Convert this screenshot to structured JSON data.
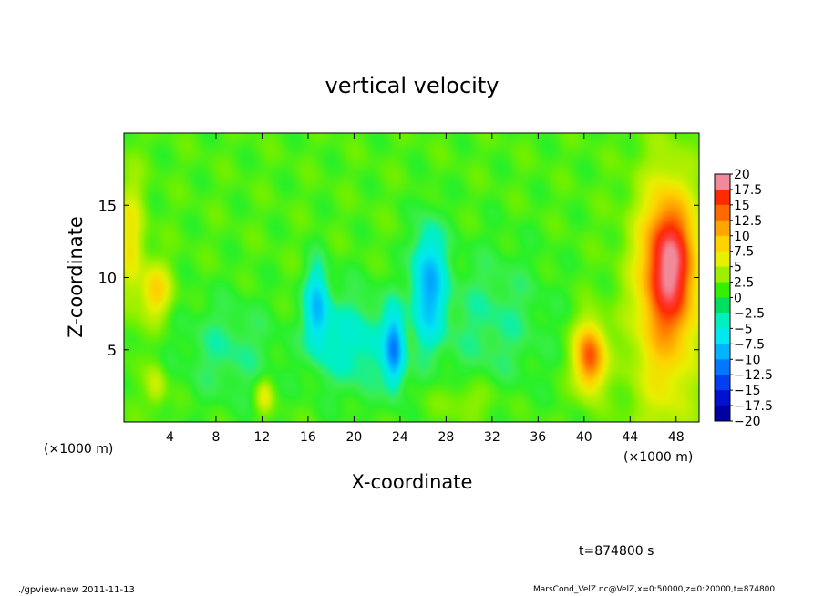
{
  "chart_data": {
    "type": "heatmap",
    "title": "vertical velocity",
    "xlabel": "X-coordinate",
    "ylabel": "Z-coordinate",
    "x_unit_label": "(×1000 m)",
    "y_unit_label": "(×1000 m)",
    "xlim": [
      0,
      50
    ],
    "ylim": [
      0,
      20
    ],
    "x_ticks": [
      4,
      8,
      12,
      16,
      20,
      24,
      28,
      32,
      36,
      40,
      44,
      48
    ],
    "x_tick_labels": [
      "4",
      "8",
      "12",
      "16",
      "20",
      "24",
      "28",
      "32",
      "36",
      "40",
      "44",
      "48"
    ],
    "y_ticks": [
      5,
      10,
      15
    ],
    "y_tick_labels": [
      "5",
      "10",
      "15"
    ],
    "colorbar": {
      "levels": [
        20,
        17.5,
        15,
        12.5,
        10,
        7.5,
        5,
        2.5,
        0,
        -2.5,
        -5,
        -7.5,
        -10,
        -12.5,
        -15,
        -17.5,
        -20
      ],
      "labels": [
        "20",
        "17.5",
        "15",
        "12.5",
        "10",
        "7.5",
        "5",
        "2.5",
        "0",
        "−2.5",
        "−5",
        "−7.5",
        "−10",
        "−12.5",
        "−15",
        "−17.5",
        "−20"
      ],
      "colors": [
        "#f08a9a",
        "#ff3a3a",
        "#ff2a00",
        "#ff6a00",
        "#ffa500",
        "#ffd200",
        "#e6f000",
        "#9cf000",
        "#32f000",
        "#00e060",
        "#00f0c0",
        "#00e8f0",
        "#00b4ff",
        "#0078ff",
        "#0040f0",
        "#0010d0",
        "#0000a0",
        "#6a00c0"
      ]
    },
    "features": [
      {
        "x": 47.5,
        "z": 11.0,
        "value": 14,
        "sx": 1.4,
        "sz": 3.0
      },
      {
        "x": 47.0,
        "z": 8.0,
        "value": 7,
        "sx": 2.0,
        "sz": 6.0
      },
      {
        "x": 40.5,
        "z": 4.5,
        "value": 13,
        "sx": 0.9,
        "sz": 1.6
      },
      {
        "x": 2.8,
        "z": 9.0,
        "value": 6.5,
        "sx": 0.9,
        "sz": 1.3
      },
      {
        "x": 0.6,
        "z": 12.5,
        "value": 5,
        "sx": 0.8,
        "sz": 3.0
      },
      {
        "x": 12.2,
        "z": 1.8,
        "value": 4.5,
        "sx": 0.5,
        "sz": 0.8
      },
      {
        "x": 2.8,
        "z": 2.5,
        "value": 3.5,
        "sx": 0.6,
        "sz": 1.0
      },
      {
        "x": 23.5,
        "z": 5.0,
        "value": -9,
        "sx": 0.6,
        "sz": 1.8
      },
      {
        "x": 26.5,
        "z": 9.5,
        "value": -8,
        "sx": 1.0,
        "sz": 2.8
      },
      {
        "x": 16.8,
        "z": 8.0,
        "value": -7,
        "sx": 0.7,
        "sz": 2.0
      },
      {
        "x": 20.0,
        "z": 5.5,
        "value": -4,
        "sx": 2.5,
        "sz": 2.5
      },
      {
        "x": 9.0,
        "z": 5.0,
        "value": -2.5,
        "sx": 3.0,
        "sz": 2.5
      },
      {
        "x": 32.0,
        "z": 7.0,
        "value": -2.5,
        "sx": 3.5,
        "sz": 3.5
      },
      {
        "x": 30.0,
        "z": 1.5,
        "value": 2.0,
        "sx": 2.0,
        "sz": 1.0
      }
    ]
  },
  "annotations": {
    "time": "t=874800 s",
    "footer_left": "./gpview-new   2011-11-13",
    "footer_right": "MarsCond_VelZ.nc@VelZ,x=0:50000,z=0:20000,t=874800"
  }
}
